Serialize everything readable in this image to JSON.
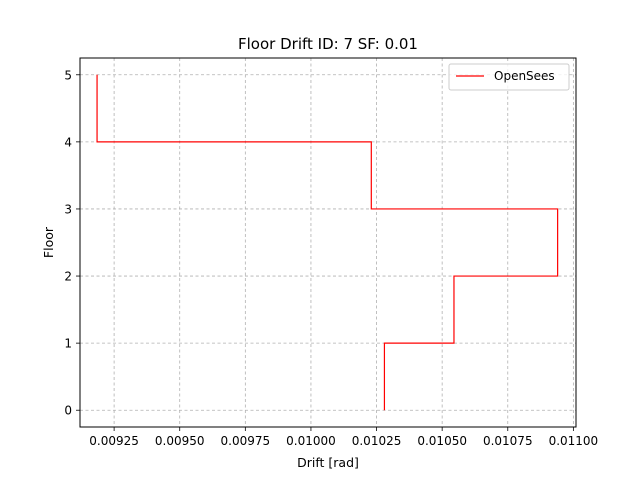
{
  "chart_data": {
    "type": "line",
    "title": "Floor Drift ID: 7  SF: 0.01",
    "xlabel": "Drift [rad]",
    "ylabel": "Floor",
    "xlim": [
      0.00912,
      0.01101
    ],
    "ylim": [
      -0.25,
      5.25
    ],
    "xticks": [
      0.00925,
      0.0095,
      0.00975,
      0.01,
      0.01025,
      0.0105,
      0.01075,
      0.011
    ],
    "xtick_labels": [
      "0.00925",
      "0.00950",
      "0.00975",
      "0.01000",
      "0.01025",
      "0.01050",
      "0.01075",
      "0.01100"
    ],
    "yticks": [
      0,
      1,
      2,
      3,
      4,
      5
    ],
    "ytick_labels": [
      "0",
      "1",
      "2",
      "3",
      "4",
      "5"
    ],
    "grid": true,
    "legend_position": "upper right",
    "series": [
      {
        "name": "OpenSees",
        "color": "#ff0000",
        "drift": [
          0.01028,
          0.010545,
          0.01094,
          0.01023,
          0.009185
        ],
        "floors": [
          0,
          1,
          2,
          3,
          4,
          5
        ]
      }
    ]
  }
}
